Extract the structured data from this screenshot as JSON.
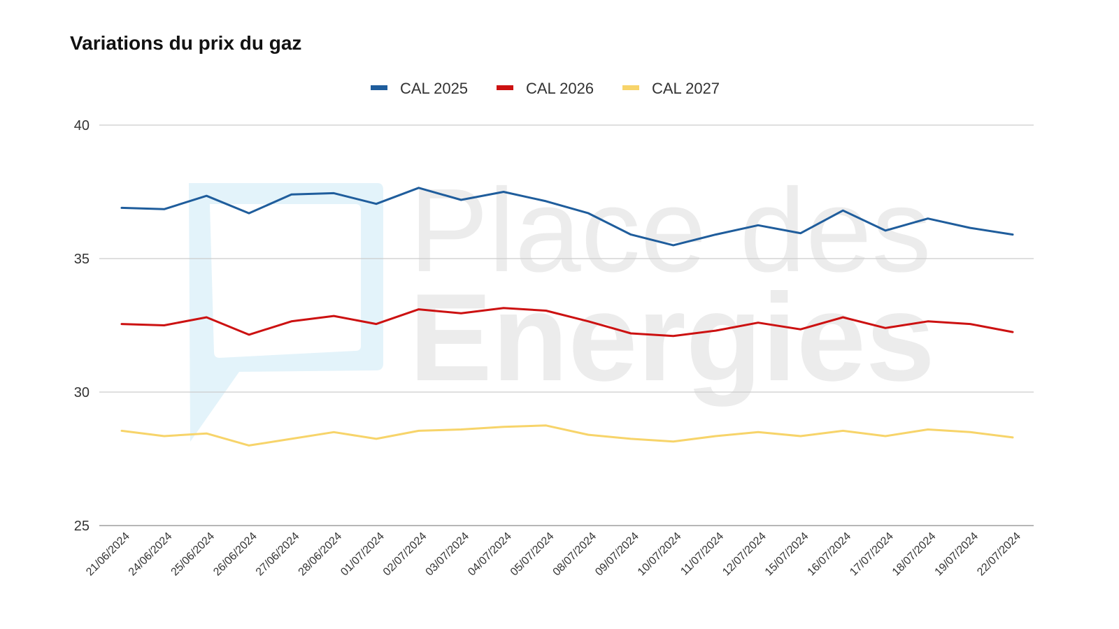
{
  "watermark": {
    "line1": "Place des",
    "line2": "Energies",
    "logo_color": "#e3f3fa"
  },
  "chart_data": {
    "type": "line",
    "title": "Variations du prix du gaz",
    "xlabel": "",
    "ylabel": "",
    "ylim": [
      25,
      40
    ],
    "yticks": [
      25,
      30,
      35,
      40
    ],
    "grid": true,
    "legend_position": "top-center",
    "categories": [
      "21/06/2024",
      "24/06/2024",
      "25/06/2024",
      "26/06/2024",
      "27/06/2024",
      "28/06/2024",
      "01/07/2024",
      "02/07/2024",
      "03/07/2024",
      "04/07/2024",
      "05/07/2024",
      "08/07/2024",
      "09/07/2024",
      "10/07/2024",
      "11/07/2024",
      "12/07/2024",
      "15/07/2024",
      "16/07/2024",
      "17/07/2024",
      "18/07/2024",
      "19/07/2024",
      "22/07/2024"
    ],
    "series": [
      {
        "name": "CAL 2025",
        "color": "#1f5d9c",
        "values": [
          36.9,
          36.85,
          37.35,
          36.7,
          37.4,
          37.45,
          37.05,
          37.65,
          37.2,
          37.5,
          37.15,
          36.7,
          35.9,
          35.5,
          35.9,
          36.25,
          35.95,
          36.8,
          36.05,
          36.5,
          36.15,
          35.9
        ]
      },
      {
        "name": "CAL 2026",
        "color": "#cc1111",
        "values": [
          32.55,
          32.5,
          32.8,
          32.15,
          32.65,
          32.85,
          32.55,
          33.1,
          32.95,
          33.15,
          33.05,
          32.65,
          32.2,
          32.1,
          32.3,
          32.6,
          32.35,
          32.8,
          32.4,
          32.65,
          32.55,
          32.25
        ]
      },
      {
        "name": "CAL 2027",
        "color": "#f7d46a",
        "values": [
          28.55,
          28.35,
          28.45,
          28.0,
          28.25,
          28.5,
          28.25,
          28.55,
          28.6,
          28.7,
          28.75,
          28.4,
          28.25,
          28.15,
          28.35,
          28.5,
          28.35,
          28.55,
          28.35,
          28.6,
          28.5,
          28.3
        ]
      }
    ]
  }
}
